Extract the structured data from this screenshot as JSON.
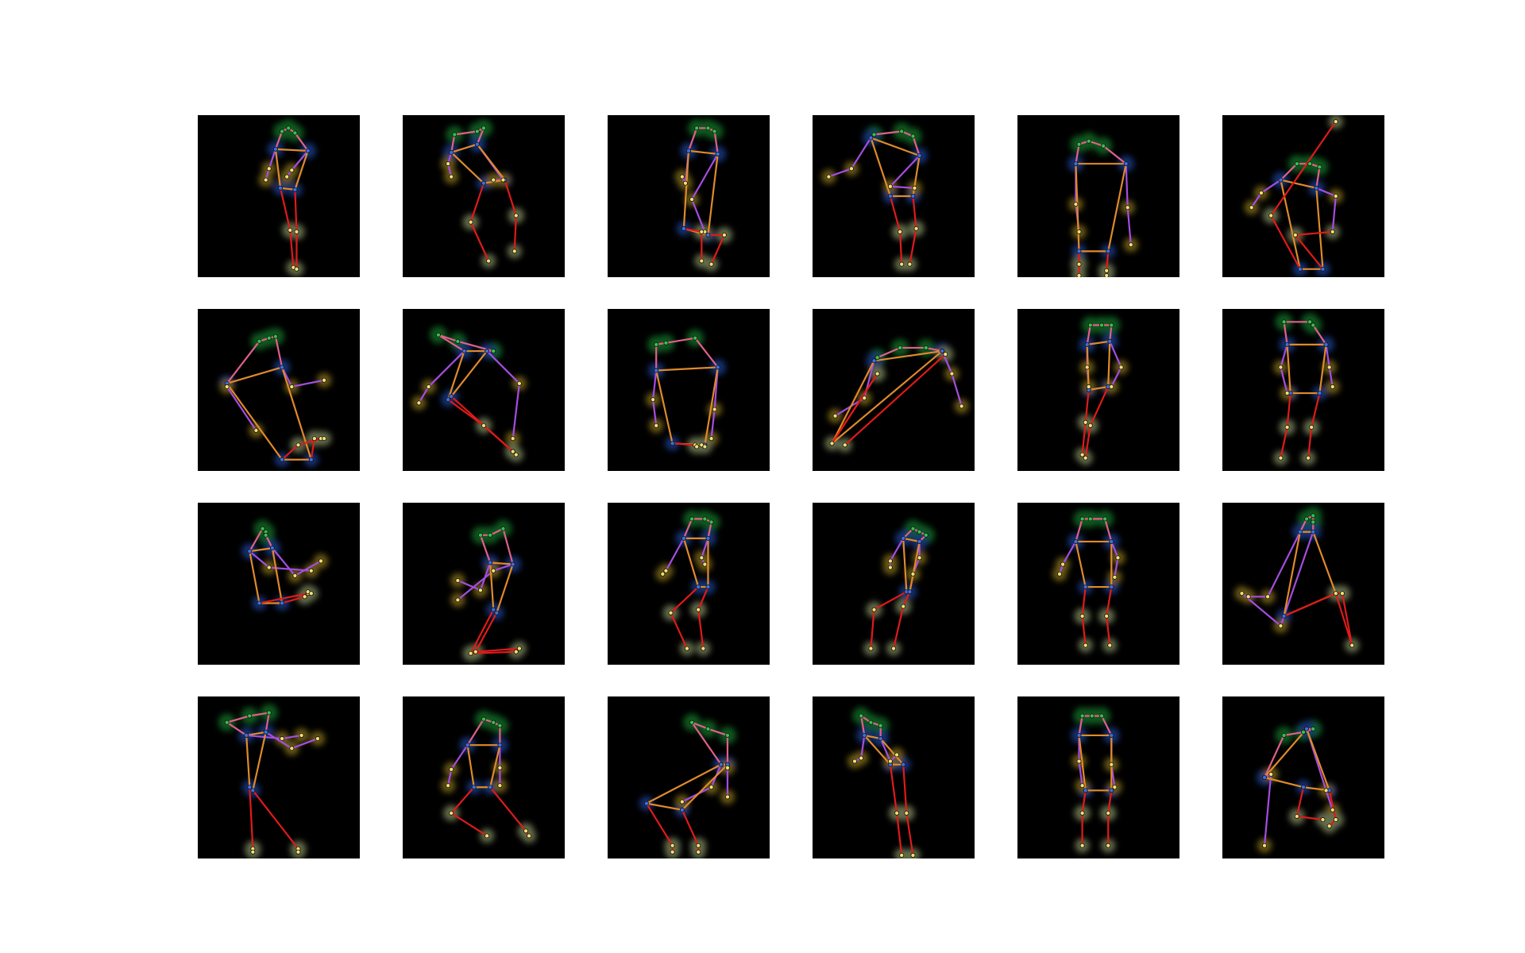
{
  "figure": {
    "grid": {
      "rows": 4,
      "cols": 6
    },
    "panel_background": "#000000",
    "page_background": "#ffffff",
    "heatmap_colors": {
      "head": "#1fa23a",
      "torso": "#2a5fd6",
      "arms": "#c8a82a",
      "legs": "#b9c98c"
    },
    "limb_colors": {
      "head": "#e0608a",
      "shoulder": "#e07a7a",
      "left_arm": "#a64de0",
      "right_arm": "#e08a2a",
      "body": "#e08a2a",
      "legs": "#e01a1a"
    },
    "keypoint_colors": {
      "head": "#36c04a",
      "torso": "#3b6fe0",
      "limb": "#f0e070"
    }
  }
}
